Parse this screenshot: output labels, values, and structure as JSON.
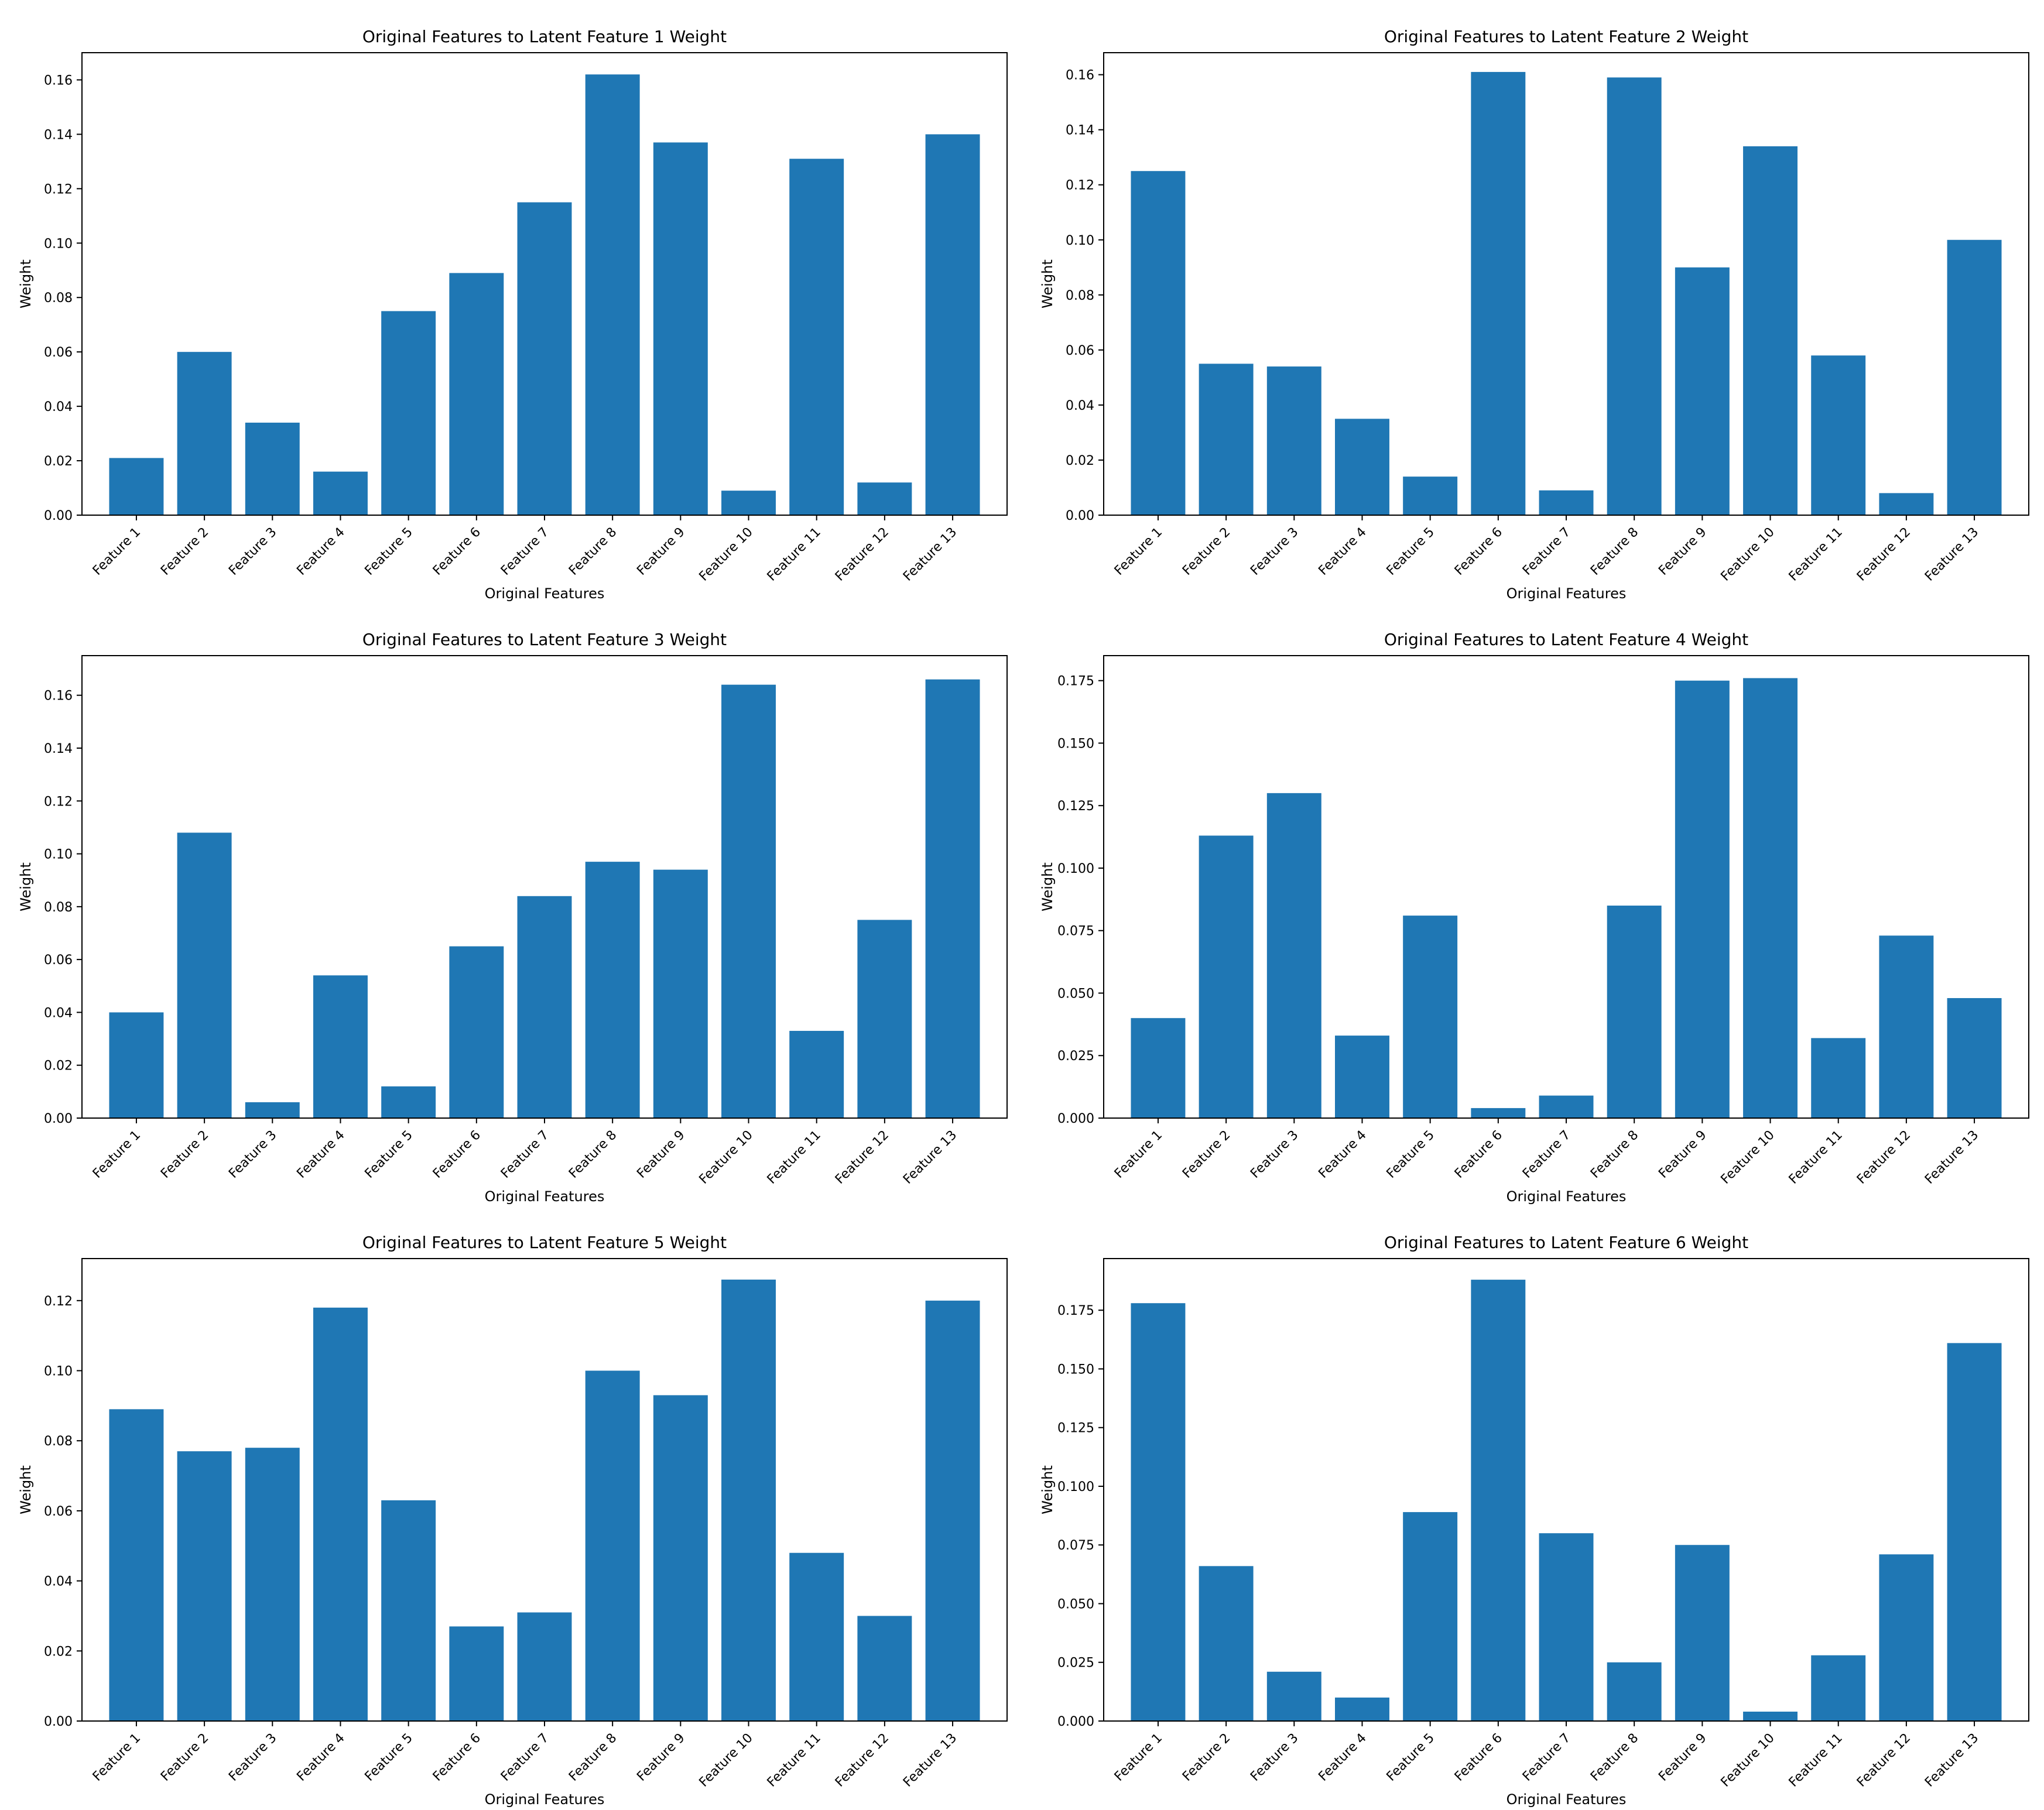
{
  "page": {
    "background": "#ffffff",
    "bar_color": "#1f77b4"
  },
  "chart_data": [
    {
      "type": "bar",
      "title": "Original Features to Latent Feature 1 Weight",
      "xlabel": "Original Features",
      "ylabel": "Weight",
      "categories": [
        "Feature 1",
        "Feature 2",
        "Feature 3",
        "Feature 4",
        "Feature 5",
        "Feature 6",
        "Feature 7",
        "Feature 8",
        "Feature 9",
        "Feature 10",
        "Feature 11",
        "Feature 12",
        "Feature 13"
      ],
      "values": [
        0.021,
        0.06,
        0.034,
        0.016,
        0.075,
        0.089,
        0.115,
        0.162,
        0.137,
        0.009,
        0.131,
        0.012,
        0.14
      ],
      "ylim": [
        0,
        0.17
      ],
      "yticks": [
        0.0,
        0.02,
        0.04,
        0.06,
        0.08,
        0.1,
        0.12,
        0.14,
        0.16
      ],
      "ytick_labels": [
        "0.00",
        "0.02",
        "0.04",
        "0.06",
        "0.08",
        "0.10",
        "0.12",
        "0.14",
        "0.16"
      ],
      "grid": false
    },
    {
      "type": "bar",
      "title": "Original Features to Latent Feature 2 Weight",
      "xlabel": "Original Features",
      "ylabel": "Weight",
      "categories": [
        "Feature 1",
        "Feature 2",
        "Feature 3",
        "Feature 4",
        "Feature 5",
        "Feature 6",
        "Feature 7",
        "Feature 8",
        "Feature 9",
        "Feature 10",
        "Feature 11",
        "Feature 12",
        "Feature 13"
      ],
      "values": [
        0.125,
        0.055,
        0.054,
        0.035,
        0.014,
        0.161,
        0.009,
        0.159,
        0.09,
        0.134,
        0.058,
        0.008,
        0.1
      ],
      "ylim": [
        0,
        0.168
      ],
      "yticks": [
        0.0,
        0.02,
        0.04,
        0.06,
        0.08,
        0.1,
        0.12,
        0.14,
        0.16
      ],
      "ytick_labels": [
        "0.00",
        "0.02",
        "0.04",
        "0.06",
        "0.08",
        "0.10",
        "0.12",
        "0.14",
        "0.16"
      ],
      "grid": false
    },
    {
      "type": "bar",
      "title": "Original Features to Latent Feature 3 Weight",
      "xlabel": "Original Features",
      "ylabel": "Weight",
      "categories": [
        "Feature 1",
        "Feature 2",
        "Feature 3",
        "Feature 4",
        "Feature 5",
        "Feature 6",
        "Feature 7",
        "Feature 8",
        "Feature 9",
        "Feature 10",
        "Feature 11",
        "Feature 12",
        "Feature 13"
      ],
      "values": [
        0.04,
        0.108,
        0.006,
        0.054,
        0.012,
        0.065,
        0.084,
        0.097,
        0.094,
        0.164,
        0.033,
        0.075,
        0.166
      ],
      "ylim": [
        0,
        0.175
      ],
      "yticks": [
        0.0,
        0.02,
        0.04,
        0.06,
        0.08,
        0.1,
        0.12,
        0.14,
        0.16
      ],
      "ytick_labels": [
        "0.00",
        "0.02",
        "0.04",
        "0.06",
        "0.08",
        "0.10",
        "0.12",
        "0.14",
        "0.16"
      ],
      "grid": false
    },
    {
      "type": "bar",
      "title": "Original Features to Latent Feature 4 Weight",
      "xlabel": "Original Features",
      "ylabel": "Weight",
      "categories": [
        "Feature 1",
        "Feature 2",
        "Feature 3",
        "Feature 4",
        "Feature 5",
        "Feature 6",
        "Feature 7",
        "Feature 8",
        "Feature 9",
        "Feature 10",
        "Feature 11",
        "Feature 12",
        "Feature 13"
      ],
      "values": [
        0.04,
        0.113,
        0.13,
        0.033,
        0.081,
        0.004,
        0.009,
        0.085,
        0.175,
        0.176,
        0.032,
        0.073,
        0.048
      ],
      "ylim": [
        0,
        0.185
      ],
      "yticks": [
        0.0,
        0.025,
        0.05,
        0.075,
        0.1,
        0.125,
        0.15,
        0.175
      ],
      "ytick_labels": [
        "0.000",
        "0.025",
        "0.050",
        "0.075",
        "0.100",
        "0.125",
        "0.150",
        "0.175"
      ],
      "grid": false
    },
    {
      "type": "bar",
      "title": "Original Features to Latent Feature 5 Weight",
      "xlabel": "Original Features",
      "ylabel": "Weight",
      "categories": [
        "Feature 1",
        "Feature 2",
        "Feature 3",
        "Feature 4",
        "Feature 5",
        "Feature 6",
        "Feature 7",
        "Feature 8",
        "Feature 9",
        "Feature 10",
        "Feature 11",
        "Feature 12",
        "Feature 13"
      ],
      "values": [
        0.089,
        0.077,
        0.078,
        0.118,
        0.063,
        0.027,
        0.031,
        0.1,
        0.093,
        0.126,
        0.048,
        0.03,
        0.12
      ],
      "ylim": [
        0,
        0.132
      ],
      "yticks": [
        0.0,
        0.02,
        0.04,
        0.06,
        0.08,
        0.1,
        0.12
      ],
      "ytick_labels": [
        "0.00",
        "0.02",
        "0.04",
        "0.06",
        "0.08",
        "0.10",
        "0.12"
      ],
      "grid": false
    },
    {
      "type": "bar",
      "title": "Original Features to Latent Feature 6 Weight",
      "xlabel": "Original Features",
      "ylabel": "Weight",
      "categories": [
        "Feature 1",
        "Feature 2",
        "Feature 3",
        "Feature 4",
        "Feature 5",
        "Feature 6",
        "Feature 7",
        "Feature 8",
        "Feature 9",
        "Feature 10",
        "Feature 11",
        "Feature 12",
        "Feature 13"
      ],
      "values": [
        0.178,
        0.066,
        0.021,
        0.01,
        0.089,
        0.188,
        0.08,
        0.025,
        0.075,
        0.004,
        0.028,
        0.071,
        0.161
      ],
      "ylim": [
        0,
        0.197
      ],
      "yticks": [
        0.0,
        0.025,
        0.05,
        0.075,
        0.1,
        0.125,
        0.15,
        0.175
      ],
      "ytick_labels": [
        "0.000",
        "0.025",
        "0.050",
        "0.075",
        "0.100",
        "0.125",
        "0.150",
        "0.175"
      ],
      "grid": false
    }
  ]
}
